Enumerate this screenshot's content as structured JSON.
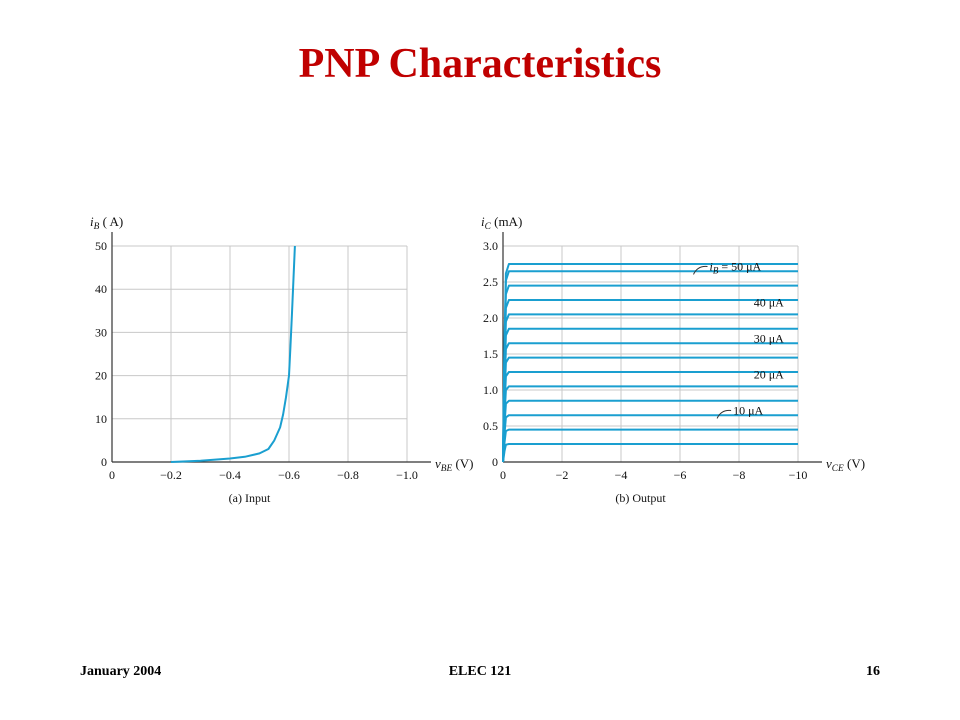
{
  "slide": {
    "title": "PNP Characteristics",
    "footer": {
      "date": "January 2004",
      "course": "ELEC 121",
      "page": "16"
    }
  },
  "colors": {
    "title": "#c00000",
    "curve": "#1a9fd0",
    "grid": "#c8c8c8"
  },
  "chart_data": [
    {
      "type": "line",
      "caption": "(a) Input",
      "ylabel_var": "i",
      "ylabel_sub": "B",
      "ylabel_unit": "( A)",
      "xlabel_var": "v",
      "xlabel_sub": "BE",
      "xlabel_unit": "(V)",
      "xlim": [
        0,
        -1.0
      ],
      "ylim": [
        0,
        50
      ],
      "xticks": [
        "0",
        "−0.2",
        "−0.4",
        "−0.6",
        "−0.8",
        "−1.0"
      ],
      "xtick_values": [
        0,
        -0.2,
        -0.4,
        -0.6,
        -0.8,
        -1.0
      ],
      "yticks": [
        "0",
        "10",
        "20",
        "30",
        "40",
        "50"
      ],
      "ytick_values": [
        0,
        10,
        20,
        30,
        40,
        50
      ],
      "grid": true,
      "series": [
        {
          "x": [
            -0.2,
            -0.3,
            -0.4,
            -0.45,
            -0.5,
            -0.53,
            -0.55,
            -0.57,
            -0.58,
            -0.59,
            -0.6,
            -0.605,
            -0.61,
            -0.615,
            -0.62
          ],
          "y": [
            0,
            0.3,
            0.8,
            1.2,
            2,
            3,
            5,
            8,
            11,
            15,
            20,
            27,
            34,
            42,
            50
          ]
        }
      ]
    },
    {
      "type": "line",
      "caption": "(b) Output",
      "ylabel_var": "i",
      "ylabel_sub": "C",
      "ylabel_unit": "(mA)",
      "xlabel_var": "v",
      "xlabel_sub": "CE",
      "xlabel_unit": "(V)",
      "xlim": [
        0,
        -10
      ],
      "ylim": [
        0,
        3.0
      ],
      "xticks": [
        "0",
        "−2",
        "−4",
        "−6",
        "−8",
        "−10"
      ],
      "xtick_values": [
        0,
        -2,
        -4,
        -6,
        -8,
        -10
      ],
      "yticks": [
        "0",
        "0.5",
        "1.0",
        "1.5",
        "2.0",
        "2.5",
        "3.0"
      ],
      "ytick_values": [
        0,
        0.5,
        1.0,
        1.5,
        2.0,
        2.5,
        3.0
      ],
      "grid": true,
      "series": [
        {
          "x": [
            0,
            -0.05,
            -0.1,
            -0.2,
            -10
          ],
          "y": [
            0,
            0.15,
            0.24,
            0.25,
            0.25
          ]
        },
        {
          "x": [
            0,
            -0.05,
            -0.1,
            -0.2,
            -10
          ],
          "y": [
            0,
            0.27,
            0.43,
            0.45,
            0.45
          ]
        },
        {
          "x": [
            0,
            -0.05,
            -0.1,
            -0.2,
            -10
          ],
          "y": [
            0,
            0.39,
            0.62,
            0.65,
            0.65
          ]
        },
        {
          "x": [
            0,
            -0.05,
            -0.1,
            -0.2,
            -10
          ],
          "y": [
            0,
            0.51,
            0.81,
            0.85,
            0.85
          ]
        },
        {
          "x": [
            0,
            -0.05,
            -0.1,
            -0.2,
            -10
          ],
          "y": [
            0,
            0.63,
            1.0,
            1.05,
            1.05
          ]
        },
        {
          "x": [
            0,
            -0.05,
            -0.1,
            -0.2,
            -10
          ],
          "y": [
            0,
            0.75,
            1.19,
            1.25,
            1.25
          ]
        },
        {
          "x": [
            0,
            -0.05,
            -0.1,
            -0.2,
            -10
          ],
          "y": [
            0,
            0.87,
            1.38,
            1.45,
            1.45
          ]
        },
        {
          "x": [
            0,
            -0.05,
            -0.1,
            -0.2,
            -10
          ],
          "y": [
            0,
            0.99,
            1.57,
            1.65,
            1.65
          ]
        },
        {
          "x": [
            0,
            -0.05,
            -0.1,
            -0.2,
            -10
          ],
          "y": [
            0,
            1.11,
            1.76,
            1.85,
            1.85
          ]
        },
        {
          "x": [
            0,
            -0.05,
            -0.1,
            -0.2,
            -10
          ],
          "y": [
            0,
            1.23,
            1.95,
            2.05,
            2.05
          ]
        },
        {
          "x": [
            0,
            -0.05,
            -0.1,
            -0.2,
            -10
          ],
          "y": [
            0,
            1.35,
            2.14,
            2.25,
            2.25
          ]
        },
        {
          "x": [
            0,
            -0.05,
            -0.1,
            -0.2,
            -10
          ],
          "y": [
            0,
            1.47,
            2.33,
            2.45,
            2.45
          ]
        },
        {
          "x": [
            0,
            -0.05,
            -0.1,
            -0.2,
            -10
          ],
          "y": [
            0,
            1.59,
            2.52,
            2.65,
            2.65
          ]
        },
        {
          "x": [
            0,
            -0.05,
            -0.1,
            -0.2,
            -10
          ],
          "y": [
            0,
            1.65,
            2.62,
            2.75,
            2.75
          ]
        }
      ],
      "annotations": [
        {
          "var": "i",
          "sub": "B",
          "text": " = 50 μA",
          "x": -7.0,
          "y": 2.66,
          "leader": true
        },
        {
          "text": "40 μA",
          "x": -8.5,
          "y": 2.16,
          "leader": false
        },
        {
          "text": "30 μA",
          "x": -8.5,
          "y": 1.66,
          "leader": false
        },
        {
          "text": "20 μA",
          "x": -8.5,
          "y": 1.16,
          "leader": false
        },
        {
          "text": "10 μA",
          "x": -7.8,
          "y": 0.66,
          "leader": true
        }
      ]
    }
  ]
}
